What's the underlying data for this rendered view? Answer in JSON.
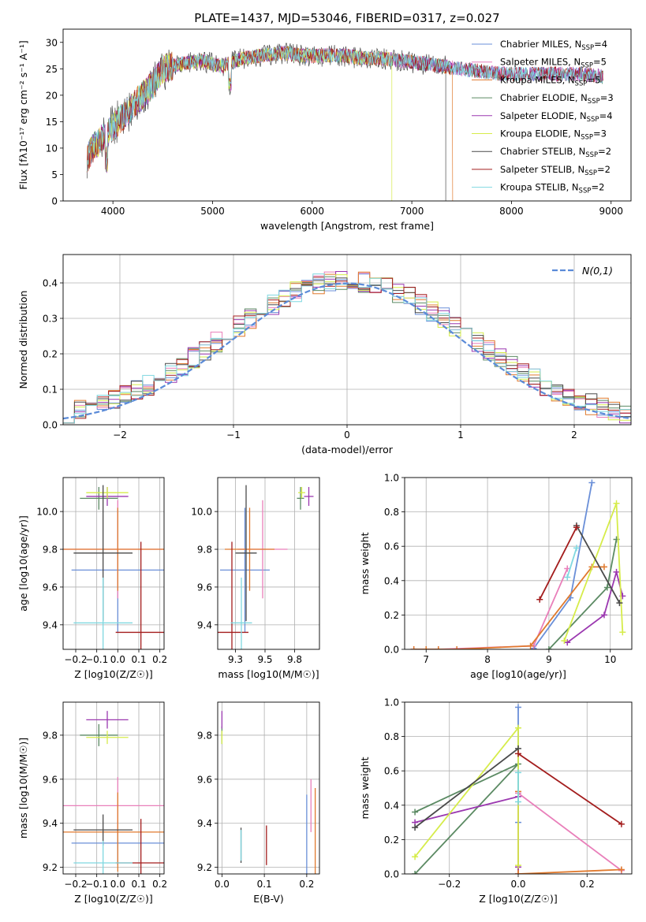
{
  "colors": {
    "Chabrier MILES": "#6a8fd8",
    "Salpeter MILES": "#e97fba",
    "Kroupa MILES": "#e07a2e",
    "Chabrier ELODIE": "#5b8a63",
    "Salpeter ELODIE": "#9b38b0",
    "Kroupa ELODIE": "#d6ec4a",
    "Chabrier STELIB": "#4a4a4a",
    "Salpeter STELIB": "#a31d1d",
    "Kroupa STELIB": "#7fd8e0",
    "gauss": "#5b8bd8"
  },
  "chart_data": [
    {
      "id": "spectrum",
      "type": "line",
      "title": "PLATE=1437, MJD=53046, FIBERID=0317, z=0.027",
      "xlabel": "wavelength [Angstrom, rest frame]",
      "ylabel": "Flux [fλ10⁻¹⁷ erg cm⁻² s⁻¹ A⁻¹]",
      "xlim": [
        3500,
        9200
      ],
      "ylim": [
        0,
        32.5
      ],
      "xticks": [
        4000,
        5000,
        6000,
        7000,
        8000,
        9000
      ],
      "yticks": [
        0,
        5,
        10,
        15,
        20,
        25,
        30
      ],
      "grid": false,
      "legend": "top-right",
      "continuum": {
        "x": [
          3740,
          3800,
          3900,
          4000,
          4100,
          4200,
          4300,
          4400,
          4500,
          4700,
          4900,
          5100,
          5300,
          5500,
          5700,
          5900,
          6100,
          6300,
          6500,
          6700,
          6900,
          7100,
          7300,
          7500,
          7700,
          7900,
          8100,
          8300,
          8500,
          8700,
          8920
        ],
        "y": [
          8,
          10,
          12,
          14,
          16,
          18,
          20,
          22,
          25,
          26,
          26.5,
          25.5,
          27,
          27.5,
          28,
          27.5,
          27.5,
          27.5,
          27,
          27,
          26.5,
          26,
          25.5,
          25,
          24.5,
          24,
          24,
          24,
          24,
          24,
          23.5
        ]
      },
      "series": [
        {
          "name": "Chabrier MILES, N_SSP=4",
          "color": "Chabrier MILES",
          "dropout": null
        },
        {
          "name": "Salpeter MILES, N_SSP=5",
          "color": "Salpeter MILES",
          "dropout": null
        },
        {
          "name": "Kroupa MILES, N_SSP=5",
          "color": "Kroupa MILES",
          "dropout": [
            7410,
            0
          ]
        },
        {
          "name": "Chabrier ELODIE, N_SSP=3",
          "color": "Chabrier ELODIE",
          "dropout": null
        },
        {
          "name": "Salpeter ELODIE, N_SSP=4",
          "color": "Salpeter ELODIE",
          "dropout": null
        },
        {
          "name": "Kroupa ELODIE, N_SSP=3",
          "color": "Kroupa ELODIE",
          "dropout": [
            6800,
            0
          ]
        },
        {
          "name": "Chabrier STELIB, N_SSP=2",
          "color": "Chabrier STELIB",
          "dropout": [
            7340,
            0
          ]
        },
        {
          "name": "Salpeter STELIB, N_SSP=2",
          "color": "Salpeter STELIB",
          "dropout": null
        },
        {
          "name": "Kroupa STELIB, N_SSP=2",
          "color": "Kroupa STELIB",
          "dropout": null
        }
      ]
    },
    {
      "id": "residuals",
      "type": "step-histogram",
      "xlabel": "(data-model)/error",
      "ylabel": "Normed distribution",
      "xlim": [
        -2.5,
        2.5
      ],
      "ylim": [
        0,
        0.48
      ],
      "xticks": [
        -2,
        -1,
        0,
        1,
        2
      ],
      "yticks": [
        0.0,
        0.1,
        0.2,
        0.3,
        0.4
      ],
      "grid": true,
      "legend": "top-right",
      "gauss_label": "N(0,1)",
      "bin_width": 0.1,
      "series_colors": [
        "Chabrier MILES",
        "Salpeter MILES",
        "Kroupa MILES",
        "Chabrier ELODIE",
        "Salpeter ELODIE",
        "Kroupa ELODIE",
        "Chabrier STELIB",
        "Salpeter STELIB",
        "Kroupa STELIB"
      ]
    },
    {
      "id": "z-age",
      "type": "errorbar",
      "xlabel": "Z [log10(Z/Z☉)]",
      "ylabel": "age [log10(age/yr)]",
      "xlim": [
        -0.26,
        0.22
      ],
      "ylim": [
        9.27,
        10.18
      ],
      "xticks": [
        -0.2,
        -0.1,
        0.0,
        0.1,
        0.2
      ],
      "yticks": [
        9.4,
        9.6,
        9.8,
        10.0
      ],
      "grid": true,
      "points": [
        {
          "c": "Chabrier MILES",
          "x": 0.0,
          "xerr": 0.22,
          "y": 9.69,
          "yerr": 0.33
        },
        {
          "c": "Salpeter MILES",
          "x": 0.0,
          "xerr": 0.3,
          "y": 9.8,
          "yerr": 0.26
        },
        {
          "c": "Kroupa MILES",
          "x": 0.0,
          "xerr": 0.3,
          "y": 9.8,
          "yerr": 0.22
        },
        {
          "c": "Chabrier ELODIE",
          "x": -0.09,
          "xerr": 0.09,
          "y": 10.07,
          "yerr": 0.06
        },
        {
          "c": "Salpeter ELODIE",
          "x": -0.05,
          "xerr": 0.1,
          "y": 10.08,
          "yerr": 0.05
        },
        {
          "c": "Kroupa ELODIE",
          "x": -0.05,
          "xerr": 0.1,
          "y": 10.1,
          "yerr": 0.03
        },
        {
          "c": "Chabrier STELIB",
          "x": -0.07,
          "xerr": 0.14,
          "y": 9.78,
          "yerr": 0.36
        },
        {
          "c": "Salpeter STELIB",
          "x": 0.11,
          "xerr": 0.12,
          "y": 9.36,
          "yerr": 0.48
        },
        {
          "c": "Kroupa STELIB",
          "x": -0.07,
          "xerr": 0.14,
          "y": 9.41,
          "yerr": 0.24
        }
      ]
    },
    {
      "id": "mass-age",
      "type": "errorbar",
      "xlabel": "mass [log10(M/M☉)]",
      "ylabel": "",
      "xlim": [
        9.1,
        9.96
      ],
      "ylim": [
        9.27,
        10.18
      ],
      "xticks": [
        9.25,
        9.5,
        9.75
      ],
      "yticks": [
        9.4,
        9.6,
        9.8,
        10.0
      ],
      "grid": true,
      "points": [
        {
          "c": "Chabrier MILES",
          "x": 9.33,
          "xerr": 0.21,
          "y": 9.69,
          "yerr": 0.33
        },
        {
          "c": "Salpeter MILES",
          "x": 9.48,
          "xerr": 0.21,
          "y": 9.8,
          "yerr": 0.26
        },
        {
          "c": "Kroupa MILES",
          "x": 9.37,
          "xerr": 0.21,
          "y": 9.8,
          "yerr": 0.22
        },
        {
          "c": "Chabrier ELODIE",
          "x": 9.8,
          "xerr": 0.03,
          "y": 10.07,
          "yerr": 0.06
        },
        {
          "c": "Salpeter ELODIE",
          "x": 9.87,
          "xerr": 0.04,
          "y": 10.08,
          "yerr": 0.05
        },
        {
          "c": "Kroupa ELODIE",
          "x": 9.81,
          "xerr": 0.03,
          "y": 10.1,
          "yerr": 0.03
        },
        {
          "c": "Chabrier STELIB",
          "x": 9.34,
          "xerr": 0.09,
          "y": 9.78,
          "yerr": 0.36
        },
        {
          "c": "Salpeter STELIB",
          "x": 9.22,
          "xerr": 0.14,
          "y": 9.36,
          "yerr": 0.48
        },
        {
          "c": "Kroupa STELIB",
          "x": 9.3,
          "xerr": 0.09,
          "y": 9.41,
          "yerr": 0.24
        }
      ]
    },
    {
      "id": "age-weight",
      "type": "line",
      "xlabel": "age [log10(age/yr)]",
      "ylabel": "mass weight",
      "xlim": [
        6.65,
        10.35
      ],
      "ylim": [
        0,
        1
      ],
      "xticks": [
        7,
        8,
        9,
        10
      ],
      "yticks": [
        0.0,
        0.2,
        0.4,
        0.6,
        0.8,
        1.0
      ],
      "grid": true,
      "series": [
        {
          "c": "Chabrier MILES",
          "x": [
            8.75,
            9.35,
            9.7
          ],
          "y": [
            0.005,
            0.3,
            0.97
          ]
        },
        {
          "c": "Salpeter MILES",
          "x": [
            6.8,
            7.0,
            7.2,
            8.75,
            9.3
          ],
          "y": [
            0.0,
            0.0,
            0.0,
            0.02,
            0.47
          ]
        },
        {
          "c": "Kroupa MILES",
          "x": [
            6.8,
            7.0,
            7.2,
            7.5,
            8.7,
            9.7,
            9.9
          ],
          "y": [
            0.0,
            0.0,
            0.0,
            0.0,
            0.02,
            0.48,
            0.48
          ]
        },
        {
          "c": "Chabrier ELODIE",
          "x": [
            9.0,
            9.95,
            10.1
          ],
          "y": [
            0.0,
            0.36,
            0.64
          ]
        },
        {
          "c": "Salpeter ELODIE",
          "x": [
            9.3,
            9.9,
            10.1,
            10.2
          ],
          "y": [
            0.04,
            0.2,
            0.45,
            0.31
          ]
        },
        {
          "c": "Kroupa ELODIE",
          "x": [
            9.25,
            10.1,
            10.2
          ],
          "y": [
            0.05,
            0.85,
            0.1
          ]
        },
        {
          "c": "Chabrier STELIB",
          "x": [
            9.45,
            10.15
          ],
          "y": [
            0.72,
            0.27
          ]
        },
        {
          "c": "Salpeter STELIB",
          "x": [
            8.85,
            9.45
          ],
          "y": [
            0.29,
            0.71
          ]
        },
        {
          "c": "Kroupa STELIB",
          "x": [
            9.3,
            9.45
          ],
          "y": [
            0.42,
            0.59
          ]
        }
      ]
    },
    {
      "id": "z-mass",
      "type": "errorbar",
      "xlabel": "Z [log10(Z/Z☉)]",
      "ylabel": "mass [log10(M/M☉)]",
      "xlim": [
        -0.26,
        0.22
      ],
      "ylim": [
        9.17,
        9.95
      ],
      "xticks": [
        -0.2,
        -0.1,
        0.0,
        0.1,
        0.2
      ],
      "yticks": [
        9.2,
        9.4,
        9.6,
        9.8
      ],
      "grid": true,
      "points": [
        {
          "c": "Chabrier MILES",
          "x": 0.0,
          "xerr": 0.22,
          "y": 9.31,
          "yerr": 0.1
        },
        {
          "c": "Salpeter MILES",
          "x": 0.0,
          "xerr": 0.3,
          "y": 9.48,
          "yerr": 0.13
        },
        {
          "c": "Kroupa MILES",
          "x": 0.0,
          "xerr": 0.3,
          "y": 9.36,
          "yerr": 0.18
        },
        {
          "c": "Chabrier ELODIE",
          "x": -0.09,
          "xerr": 0.09,
          "y": 9.8,
          "yerr": 0.05
        },
        {
          "c": "Salpeter ELODIE",
          "x": -0.05,
          "xerr": 0.1,
          "y": 9.87,
          "yerr": 0.04
        },
        {
          "c": "Kroupa ELODIE",
          "x": -0.05,
          "xerr": 0.1,
          "y": 9.79,
          "yerr": 0.03
        },
        {
          "c": "Chabrier STELIB",
          "x": -0.07,
          "xerr": 0.14,
          "y": 9.37,
          "yerr": 0.07
        },
        {
          "c": "Salpeter STELIB",
          "x": 0.11,
          "xerr": 0.12,
          "y": 9.22,
          "yerr": 0.2
        },
        {
          "c": "Kroupa STELIB",
          "x": -0.07,
          "xerr": 0.14,
          "y": 9.22,
          "yerr": 0.1
        }
      ]
    },
    {
      "id": "ebv-mass",
      "type": "errorbar",
      "xlabel": "E(B-V)",
      "ylabel": "",
      "xlim": [
        -0.01,
        0.23
      ],
      "ylim": [
        9.17,
        9.95
      ],
      "xticks": [
        0.0,
        0.1,
        0.2
      ],
      "yticks": [
        9.2,
        9.4,
        9.6,
        9.8
      ],
      "grid": true,
      "points": [
        {
          "c": "Chabrier MILES",
          "x": 0.2,
          "xerr": 0,
          "y": 9.31,
          "yerr": 0.22
        },
        {
          "c": "Salpeter MILES",
          "x": 0.21,
          "xerr": 0,
          "y": 9.48,
          "yerr": 0.12
        },
        {
          "c": "Kroupa MILES",
          "x": 0.22,
          "xerr": 0,
          "y": 9.36,
          "yerr": 0.2
        },
        {
          "c": "Chabrier ELODIE",
          "x": 0.0,
          "xerr": 0,
          "y": 9.8,
          "yerr": 0.04
        },
        {
          "c": "Salpeter ELODIE",
          "x": 0.0,
          "xerr": 0,
          "y": 9.87,
          "yerr": 0.04
        },
        {
          "c": "Kroupa ELODIE",
          "x": 0.0,
          "xerr": 0,
          "y": 9.79,
          "yerr": 0.03
        },
        {
          "c": "Chabrier STELIB",
          "x": 0.045,
          "xerr": 0,
          "y": 9.3,
          "yerr": 0.08
        },
        {
          "c": "Salpeter STELIB",
          "x": 0.105,
          "xerr": 0,
          "y": 9.3,
          "yerr": 0.09
        },
        {
          "c": "Kroupa STELIB",
          "x": 0.045,
          "xerr": 0,
          "y": 9.3,
          "yerr": 0.07
        }
      ]
    },
    {
      "id": "z-weight",
      "type": "line",
      "xlabel": "Z [log10(Z/Z☉)]",
      "ylabel": "mass weight",
      "xlim": [
        -0.33,
        0.33
      ],
      "ylim": [
        0,
        1
      ],
      "xticks": [
        -0.2,
        0.0,
        0.2
      ],
      "yticks": [
        0.0,
        0.2,
        0.4,
        0.6,
        0.8,
        1.0
      ],
      "grid": true,
      "series": [
        {
          "c": "Chabrier MILES",
          "x": [
            0.0,
            0.0,
            0.0
          ],
          "y": [
            0.0,
            0.3,
            0.97
          ]
        },
        {
          "c": "Salpeter MILES",
          "x": [
            0.0,
            0.0,
            0.3
          ],
          "y": [
            0.0,
            0.47,
            0.02
          ]
        },
        {
          "c": "Kroupa MILES",
          "x": [
            0.0,
            0.0,
            0.3
          ],
          "y": [
            0.48,
            0.0,
            0.025
          ]
        },
        {
          "c": "Chabrier ELODIE",
          "x": [
            -0.3,
            0.0,
            -0.3
          ],
          "y": [
            0.36,
            0.64,
            0.0
          ]
        },
        {
          "c": "Salpeter ELODIE",
          "x": [
            -0.3,
            0.0,
            0.0
          ],
          "y": [
            0.3,
            0.45,
            0.04
          ]
        },
        {
          "c": "Kroupa ELODIE",
          "x": [
            -0.3,
            0.0,
            0.0
          ],
          "y": [
            0.1,
            0.85,
            0.05
          ]
        },
        {
          "c": "Chabrier STELIB",
          "x": [
            -0.3,
            0.0
          ],
          "y": [
            0.27,
            0.73
          ]
        },
        {
          "c": "Salpeter STELIB",
          "x": [
            0.0,
            0.3
          ],
          "y": [
            0.7,
            0.29
          ]
        },
        {
          "c": "Kroupa STELIB",
          "x": [
            0.0,
            0.0
          ],
          "y": [
            0.42,
            0.59
          ]
        }
      ]
    }
  ]
}
